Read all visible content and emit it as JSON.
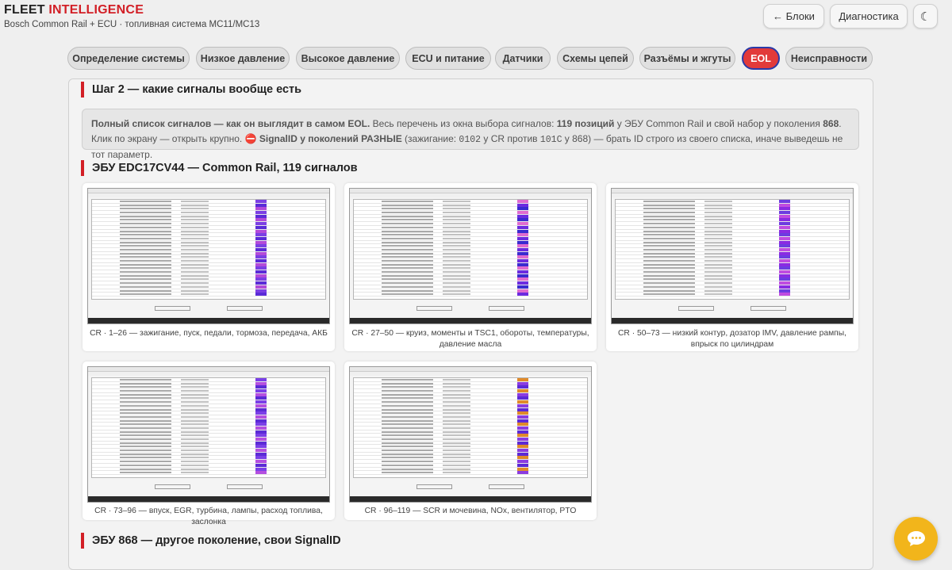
{
  "app": {
    "brand_part1": "FLEET",
    "brand_part2": "INTELLIGENCE",
    "subtitle": "Bosch Common Rail + ECU · топливная система MC11/MC13"
  },
  "header_buttons": {
    "blocks": "← Блоки",
    "diagnostics": "Диагностика",
    "theme": "☾"
  },
  "tabs": [
    {
      "label": "Определение системы"
    },
    {
      "label": "Низкое давление"
    },
    {
      "label": "Высокое давление"
    },
    {
      "label": "ECU и питание"
    },
    {
      "label": "Датчики"
    },
    {
      "label": "Схемы цепей"
    },
    {
      "label": "Разъёмы и жгуты"
    },
    {
      "label": "EOL",
      "active": true
    },
    {
      "label": "Неисправности"
    }
  ],
  "step": {
    "title": "Шаг 2 — какие сигналы вообще есть"
  },
  "note": {
    "p1_bold": "Полный список сигналов — как он выглядит в самом EOL.",
    "p2": " Весь перечень из окна выбора сигналов: ",
    "p3_bold": "119 позиций",
    "p4": " у ЭБУ Common Rail и свой набор у поколения ",
    "p5_bold": "868",
    "p6": ". Клик по экрану — открыть крупно. ",
    "p7_icon": "⛔",
    "p8_bold": " SignalID у поколений РАЗНЫЕ",
    "p9": " (зажигание: ",
    "p10_code": "0102",
    "p11": " у CR против ",
    "p12_code": "101C",
    "p13": " у 868) — брать ID строго из своего списка, иначе выведешь не тот параметр."
  },
  "section_cr": {
    "title": "ЭБУ EDC17CV44 — Common Rail, 119 сигналов"
  },
  "screenshots": [
    {
      "caption": "CR · 1–26 — зажигание, пуск, педали, тормоза, передача, АКБ"
    },
    {
      "caption": "CR · 27–50 — круиз, моменты и TSC1, обороты, температуры, давление масла"
    },
    {
      "caption": "CR · 50–73 — низкий контур, дозатор IMV, давление рампы, впрыск по цилиндрам"
    },
    {
      "caption": "CR · 73–96 — впуск, EGR, турбина, лампы, расход топлива, заслонка"
    },
    {
      "caption": "CR · 96–119 — SCR и мочевина, NOx, вентилятор, PTO"
    }
  ],
  "section_868": {
    "title": "ЭБУ 868 — другое поколение, свои SignalID"
  },
  "colors": {
    "accent": "#d21f26",
    "tab_active_bg": "#e23a3a",
    "tab_active_border": "#2a3aa8",
    "chat_button": "#f2b51b"
  },
  "icons": {
    "chat": "chat-bubble-icon",
    "theme": "moon-icon"
  }
}
